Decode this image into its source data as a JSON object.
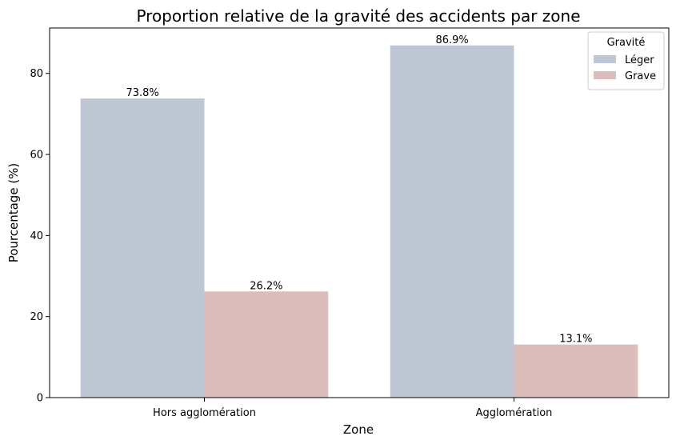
{
  "chart_data": {
    "type": "bar",
    "title": "Proportion relative de la gravité des accidents par zone",
    "xlabel": "Zone",
    "ylabel": "Pourcentage (%)",
    "categories": [
      "Hors agglomération",
      "Agglomération"
    ],
    "series": [
      {
        "name": "Léger",
        "values": [
          73.8,
          86.9
        ],
        "labels": [
          "73.8%",
          "86.9%"
        ],
        "color": "#bfc7d5"
      },
      {
        "name": "Grave",
        "values": [
          26.2,
          13.1
        ],
        "labels": [
          "26.2%",
          "13.1%"
        ],
        "color": "#dbbdbc"
      }
    ],
    "ylim": [
      0,
      91.2
    ],
    "yticks": [
      0,
      20,
      40,
      60,
      80
    ],
    "legend": {
      "title": "Gravité",
      "placement": "top-right"
    },
    "grid": false
  }
}
